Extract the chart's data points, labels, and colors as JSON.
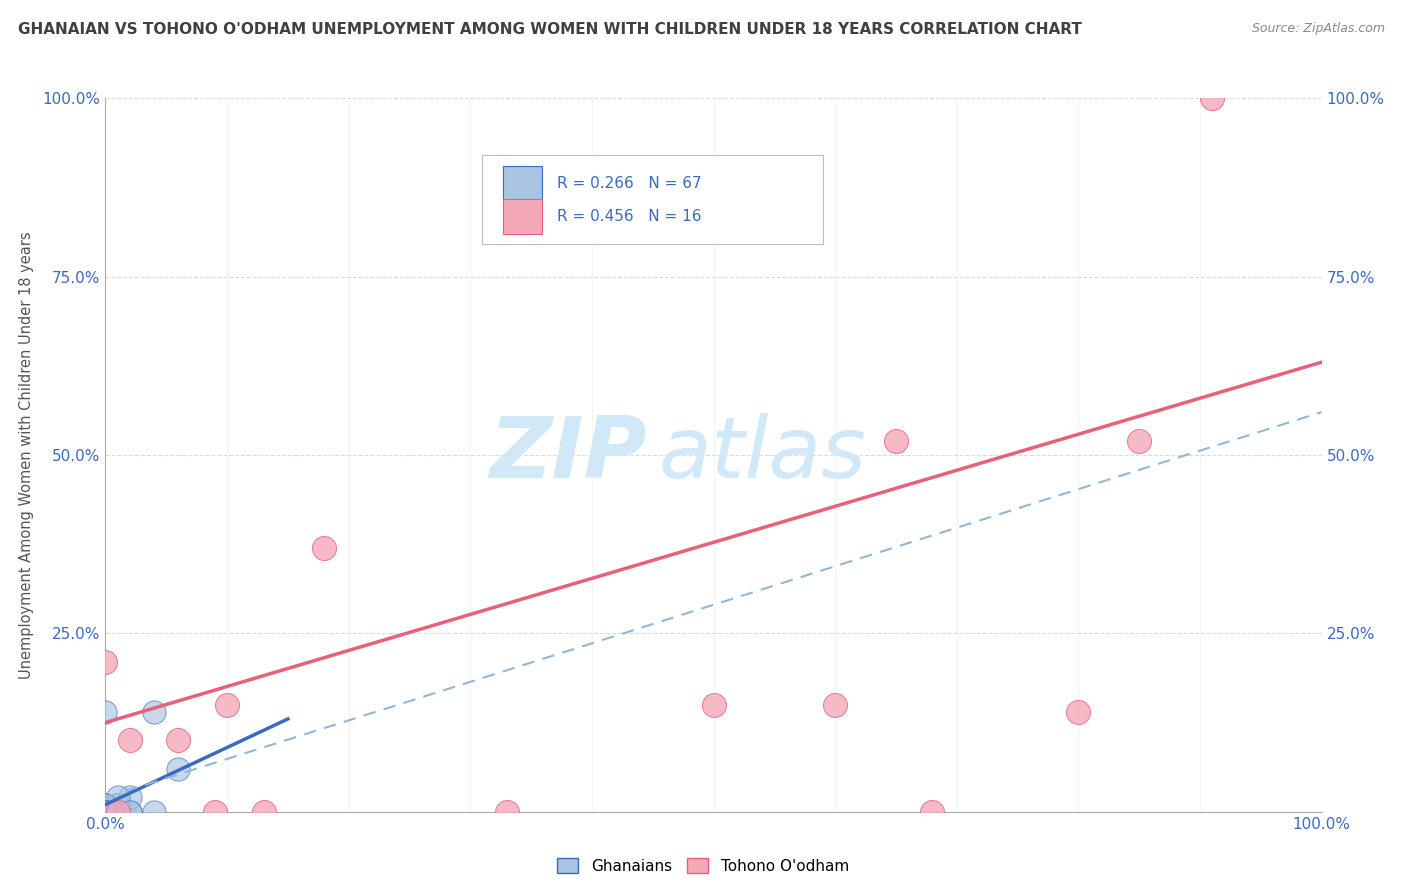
{
  "title": "GHANAIAN VS TOHONO O'ODHAM UNEMPLOYMENT AMONG WOMEN WITH CHILDREN UNDER 18 YEARS CORRELATION CHART",
  "source": "Source: ZipAtlas.com",
  "ylabel": "Unemployment Among Women with Children Under 18 years",
  "xlim": [
    0,
    1.0
  ],
  "ylim": [
    0,
    1.0
  ],
  "xticks": [
    0.0,
    0.1,
    0.2,
    0.3,
    0.4,
    0.5,
    0.6,
    0.7,
    0.8,
    0.9,
    1.0
  ],
  "yticks": [
    0.0,
    0.25,
    0.5,
    0.75,
    1.0
  ],
  "legend_r1": "R = 0.266",
  "legend_n1": "N = 67",
  "legend_r2": "R = 0.456",
  "legend_n2": "N = 16",
  "ghanaian_color": "#a8c4e0",
  "tohono_color": "#f4a8b8",
  "line_blue_color": "#3b6abf",
  "line_pink_color": "#e8607a",
  "dashed_line_color": "#90b8d8",
  "watermark_main": "ZIP",
  "watermark_sub": "atlas",
  "watermark_color": "#d0e8f8",
  "background_color": "#ffffff",
  "grid_color": "#cccccc",
  "title_color": "#404040",
  "legend_text_color": "#3b6abf",
  "ghanaians_x": [
    0.0,
    0.0,
    0.0,
    0.005,
    0.0,
    0.01,
    0.0,
    0.0,
    0.0,
    0.005,
    0.01,
    0.0,
    0.0,
    0.005,
    0.01,
    0.0,
    0.0,
    0.005,
    0.0,
    0.0,
    0.015,
    0.0,
    0.0,
    0.0,
    0.005,
    0.0,
    0.01,
    0.02,
    0.0,
    0.0,
    0.0,
    0.005,
    0.0,
    0.0,
    0.0,
    0.0,
    0.005,
    0.0,
    0.0,
    0.0,
    0.0,
    0.005,
    0.02,
    0.0,
    0.0,
    0.0,
    0.005,
    0.0,
    0.0,
    0.01,
    0.0,
    0.0,
    0.02,
    0.0,
    0.005,
    0.0,
    0.0,
    0.0,
    0.04,
    0.0,
    0.0,
    0.0,
    0.005,
    0.04,
    0.0,
    0.0,
    0.06
  ],
  "ghanaians_y": [
    0.0,
    0.0,
    0.0,
    0.0,
    0.005,
    0.0,
    0.0,
    0.0,
    0.005,
    0.0,
    0.0,
    0.005,
    0.0,
    0.0,
    0.0,
    0.0,
    0.005,
    0.0,
    0.0,
    0.0,
    0.0,
    0.0,
    0.0,
    0.0,
    0.0,
    0.0,
    0.01,
    0.0,
    0.0,
    0.0,
    0.0,
    0.0,
    0.0,
    0.0,
    0.0,
    0.0,
    0.0,
    0.0,
    0.0,
    0.0,
    0.01,
    0.0,
    0.02,
    0.0,
    0.0,
    0.0,
    0.0,
    0.0,
    0.0,
    0.02,
    0.0,
    0.0,
    0.0,
    0.0,
    0.0,
    0.0,
    0.0,
    0.0,
    0.0,
    0.01,
    0.0,
    0.0,
    0.0,
    0.14,
    0.0,
    0.14,
    0.06
  ],
  "tohono_x": [
    0.0,
    0.01,
    0.02,
    0.06,
    0.09,
    0.1,
    0.13,
    0.18,
    0.33,
    0.5,
    0.6,
    0.65,
    0.68,
    0.8,
    0.85,
    0.91
  ],
  "tohono_y": [
    0.21,
    0.0,
    0.1,
    0.1,
    0.0,
    0.15,
    0.0,
    0.37,
    0.0,
    0.15,
    0.15,
    0.52,
    0.0,
    0.14,
    0.52,
    1.0
  ],
  "blue_line_x0": 0.0,
  "blue_line_y0": 0.01,
  "blue_line_x1": 0.15,
  "blue_line_y1": 0.13,
  "pink_line_x0": 0.0,
  "pink_line_y0": 0.125,
  "pink_line_x1": 1.0,
  "pink_line_y1": 0.63,
  "dash_line_x0": 0.0,
  "dash_line_y0": 0.02,
  "dash_line_x1": 1.0,
  "dash_line_y1": 0.56
}
